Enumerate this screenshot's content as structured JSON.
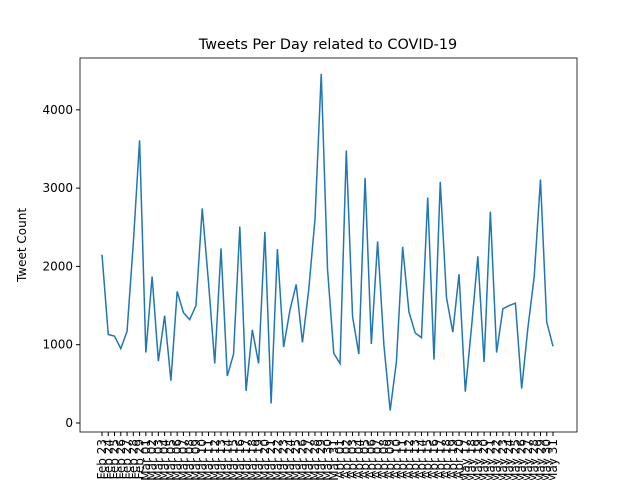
{
  "chart_data": {
    "type": "line",
    "title": "Tweets Per Day related to COVID-19",
    "y_label": "Tweet Count",
    "categories": [
      "Feb 23",
      "Feb 24",
      "Feb 25",
      "Feb 26",
      "Feb 27",
      "Feb 28",
      "Feb 29",
      "Mar 01",
      "Mar 02",
      "Mar 03",
      "Mar 04",
      "Mar 05",
      "Mar 06",
      "Mar 07",
      "Mar 08",
      "Mar 09",
      "Mar 10",
      "Mar 11",
      "Mar 12",
      "Mar 13",
      "Mar 14",
      "Mar 15",
      "Mar 16",
      "Mar 17",
      "Mar 18",
      "Mar 19",
      "Mar 20",
      "Mar 21",
      "Mar 22",
      "Mar 23",
      "Mar 24",
      "Mar 25",
      "Mar 26",
      "Mar 27",
      "Mar 28",
      "Mar 29",
      "Mar 30",
      "Mar 31",
      "Apr 01",
      "Apr 02",
      "Apr 03",
      "Apr 04",
      "Apr 05",
      "Apr 06",
      "Apr 07",
      "Apr 08",
      "Apr 09",
      "Apr 10",
      "Apr 11",
      "Apr 12",
      "Apr 13",
      "Apr 14",
      "Apr 15",
      "Apr 16",
      "Apr 17",
      "Apr 18",
      "Apr 19",
      "Apr 20",
      "May 17",
      "May 18",
      "May 19",
      "May 20",
      "May 21",
      "May 22",
      "May 23",
      "May 24",
      "May 25",
      "May 26",
      "May 27",
      "May 28",
      "May 29",
      "May 30",
      "May 31"
    ],
    "series": [
      {
        "name": "Tweet Count",
        "color": "#1f77b4",
        "values": [
          2150,
          1130,
          1110,
          950,
          1170,
          2300,
          3610,
          900,
          1870,
          790,
          1370,
          540,
          1680,
          1410,
          1320,
          1500,
          2740,
          1800,
          760,
          2230,
          600,
          880,
          2510,
          410,
          1190,
          760,
          2440,
          250,
          2220,
          970,
          1440,
          1770,
          1030,
          1700,
          2600,
          4460,
          1970,
          890,
          760,
          3480,
          1360,
          880,
          3130,
          1010,
          2320,
          1000,
          160,
          780,
          2250,
          1420,
          1150,
          1090,
          2880,
          810,
          3080,
          1600,
          1160,
          1900,
          400,
          1230,
          2130,
          780,
          2700,
          900,
          1460,
          1500,
          1530,
          440,
          1220,
          1870,
          3110,
          1290,
          980
        ]
      }
    ],
    "ylim": [
      -115,
      4662
    ],
    "yticks": [
      0,
      1000,
      2000,
      3000,
      4000
    ]
  }
}
